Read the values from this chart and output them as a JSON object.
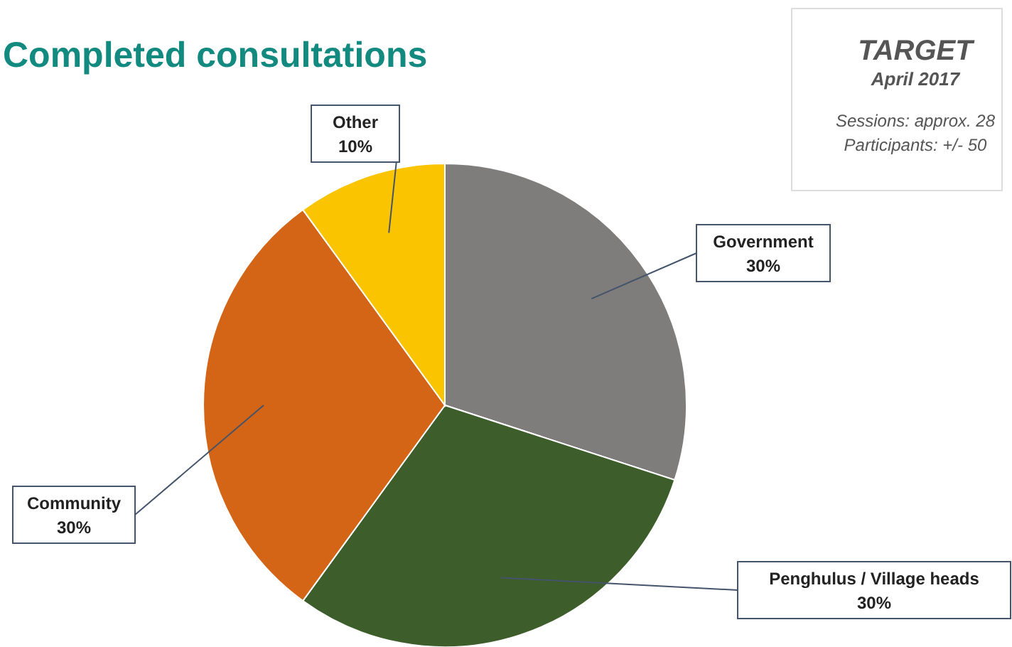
{
  "chart_data": {
    "type": "pie",
    "title": "Completed consultations",
    "categories": [
      "Government",
      "Penghulus / Village heads",
      "Community",
      "Other"
    ],
    "values": [
      30,
      30,
      30,
      10
    ],
    "colors": [
      "#7f7c7c",
      "#3d5e2a",
      "#d46416",
      "#fbc400"
    ],
    "value_labels": [
      "30%",
      "30%",
      "30%",
      "10%"
    ],
    "annotations": [
      "TARGET",
      "April 2017",
      "Sessions: approx. 28",
      "Participants: +/- 50"
    ]
  }
}
